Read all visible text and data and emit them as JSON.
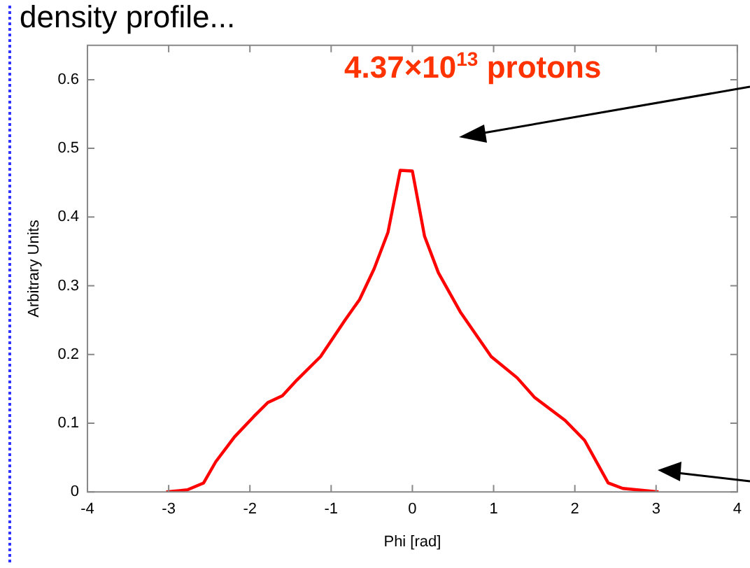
{
  "chart_data": {
    "type": "line",
    "title": "density profile...",
    "xlabel": "Phi [rad]",
    "ylabel": "Arbitrary Units",
    "annotations": [
      "4.37×10$^{13}$ protons"
    ],
    "series": [
      {
        "color": "#ff0000",
        "x": [
          -3.03,
          -2.77,
          -2.57,
          -2.42,
          -2.19,
          -1.95,
          -1.78,
          -1.6,
          -1.42,
          -1.13,
          -0.83,
          -0.65,
          -0.47,
          -0.3,
          -0.15,
          0,
          0.15,
          0.32,
          0.59,
          0.97,
          1.29,
          1.5,
          1.88,
          2.12,
          2.41,
          2.59,
          3.03
        ],
        "values": [
          0,
          0.003,
          0.013,
          0.044,
          0.08,
          0.11,
          0.13,
          0.14,
          0.163,
          0.197,
          0.25,
          0.28,
          0.325,
          0.378,
          0.468,
          0.467,
          0.372,
          0.319,
          0.262,
          0.197,
          0.166,
          0.138,
          0.104,
          0.075,
          0.013,
          0.005,
          0
        ]
      }
    ],
    "xlim": [
      -4,
      4
    ],
    "xticks": [
      -4,
      -3,
      -2,
      -1,
      0,
      1,
      2,
      3,
      4
    ],
    "ylim": [
      0,
      0.65
    ],
    "yticks": [
      0,
      0.1,
      0.2,
      0.3,
      0.4,
      0.5,
      0.6
    ],
    "grid": false,
    "legend": false,
    "marker": "none",
    "line_style": "solid"
  }
}
